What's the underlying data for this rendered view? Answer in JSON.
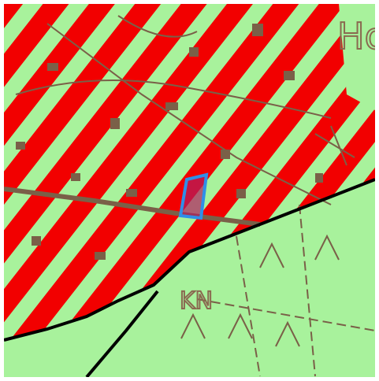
{
  "map": {
    "labels": [
      "Ho",
      "KN"
    ]
  }
}
